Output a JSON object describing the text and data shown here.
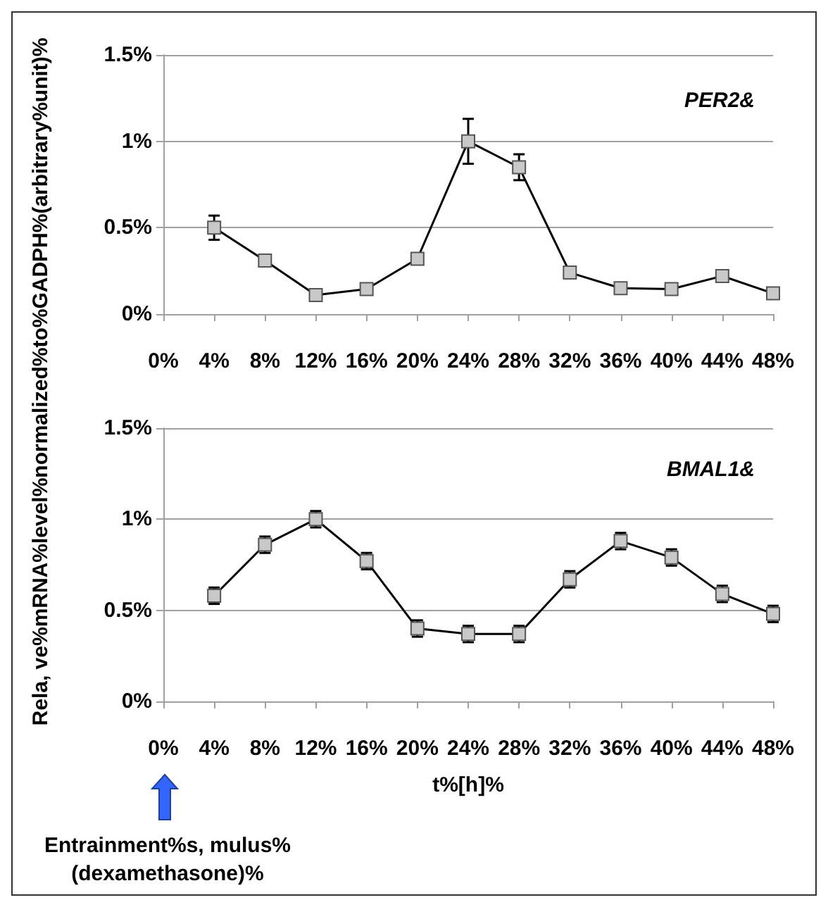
{
  "chart_data": [
    {
      "type": "line",
      "title": "PER2&",
      "ylabel": "Rela, ve%mRNA%level%normalized%to%GADPH%(arbitrary%unit)%",
      "x": [
        4,
        8,
        12,
        16,
        20,
        24,
        28,
        32,
        36,
        40,
        44,
        48
      ],
      "series": [
        {
          "color": "#000000",
          "values": [
            0.5,
            0.31,
            0.11,
            0.145,
            0.32,
            1.0,
            0.85,
            0.24,
            0.15,
            0.145,
            0.22,
            0.12
          ],
          "errors": [
            0.07,
            null,
            null,
            null,
            null,
            0.13,
            0.075,
            null,
            null,
            null,
            null,
            null
          ]
        }
      ],
      "xlim": [
        0,
        48
      ],
      "xticks": [
        {
          "value": 0,
          "label": "0%"
        },
        {
          "value": 4,
          "label": "4%"
        },
        {
          "value": 8,
          "label": "8%"
        },
        {
          "value": 12,
          "label": "12%"
        },
        {
          "value": 16,
          "label": "16%"
        },
        {
          "value": 20,
          "label": "20%"
        },
        {
          "value": 24,
          "label": "24%"
        },
        {
          "value": 28,
          "label": "28%"
        },
        {
          "value": 32,
          "label": "32%"
        },
        {
          "value": 36,
          "label": "36%"
        },
        {
          "value": 40,
          "label": "40%"
        },
        {
          "value": 44,
          "label": "44%"
        },
        {
          "value": 48,
          "label": "48%"
        }
      ],
      "ylim": [
        0,
        1.5
      ],
      "yticks": [
        {
          "value": 0,
          "label": "0%"
        },
        {
          "value": 0.5,
          "label": "0.5%"
        },
        {
          "value": 1,
          "label": "1%"
        },
        {
          "value": 1.5,
          "label": "1.5%"
        }
      ],
      "grid": "y",
      "marker": "square",
      "line_style": "solid"
    },
    {
      "type": "line",
      "title": "BMAL1&",
      "xlabel": "t%[h]%",
      "annotations": [
        "Entrainment%s, mulus%\n(dexamethasone)%"
      ],
      "x": [
        4,
        8,
        12,
        16,
        20,
        24,
        28,
        32,
        36,
        40,
        44,
        48
      ],
      "series": [
        {
          "color": "#000000",
          "values": [
            0.58,
            0.86,
            1.0,
            0.77,
            0.4,
            0.37,
            0.37,
            0.67,
            0.88,
            0.79,
            0.59,
            0.48
          ],
          "errors": [
            0.045,
            0.045,
            0.045,
            0.045,
            0.045,
            0.045,
            0.045,
            0.045,
            0.045,
            0.045,
            0.045,
            0.045
          ]
        }
      ],
      "xlim": [
        0,
        48
      ],
      "xticks": [
        {
          "value": 0,
          "label": "0%"
        },
        {
          "value": 4,
          "label": "4%"
        },
        {
          "value": 8,
          "label": "8%"
        },
        {
          "value": 12,
          "label": "12%"
        },
        {
          "value": 16,
          "label": "16%"
        },
        {
          "value": 20,
          "label": "20%"
        },
        {
          "value": 24,
          "label": "24%"
        },
        {
          "value": 28,
          "label": "28%"
        },
        {
          "value": 32,
          "label": "32%"
        },
        {
          "value": 36,
          "label": "36%"
        },
        {
          "value": 40,
          "label": "40%"
        },
        {
          "value": 44,
          "label": "44%"
        },
        {
          "value": 48,
          "label": "48%"
        }
      ],
      "ylim": [
        0,
        1.5
      ],
      "yticks": [
        {
          "value": 0,
          "label": "0%"
        },
        {
          "value": 0.5,
          "label": "0.5%"
        },
        {
          "value": 1,
          "label": "1%"
        },
        {
          "value": 1.5,
          "label": "1.5%"
        }
      ],
      "grid": "y",
      "marker": "square",
      "line_style": "solid"
    }
  ]
}
